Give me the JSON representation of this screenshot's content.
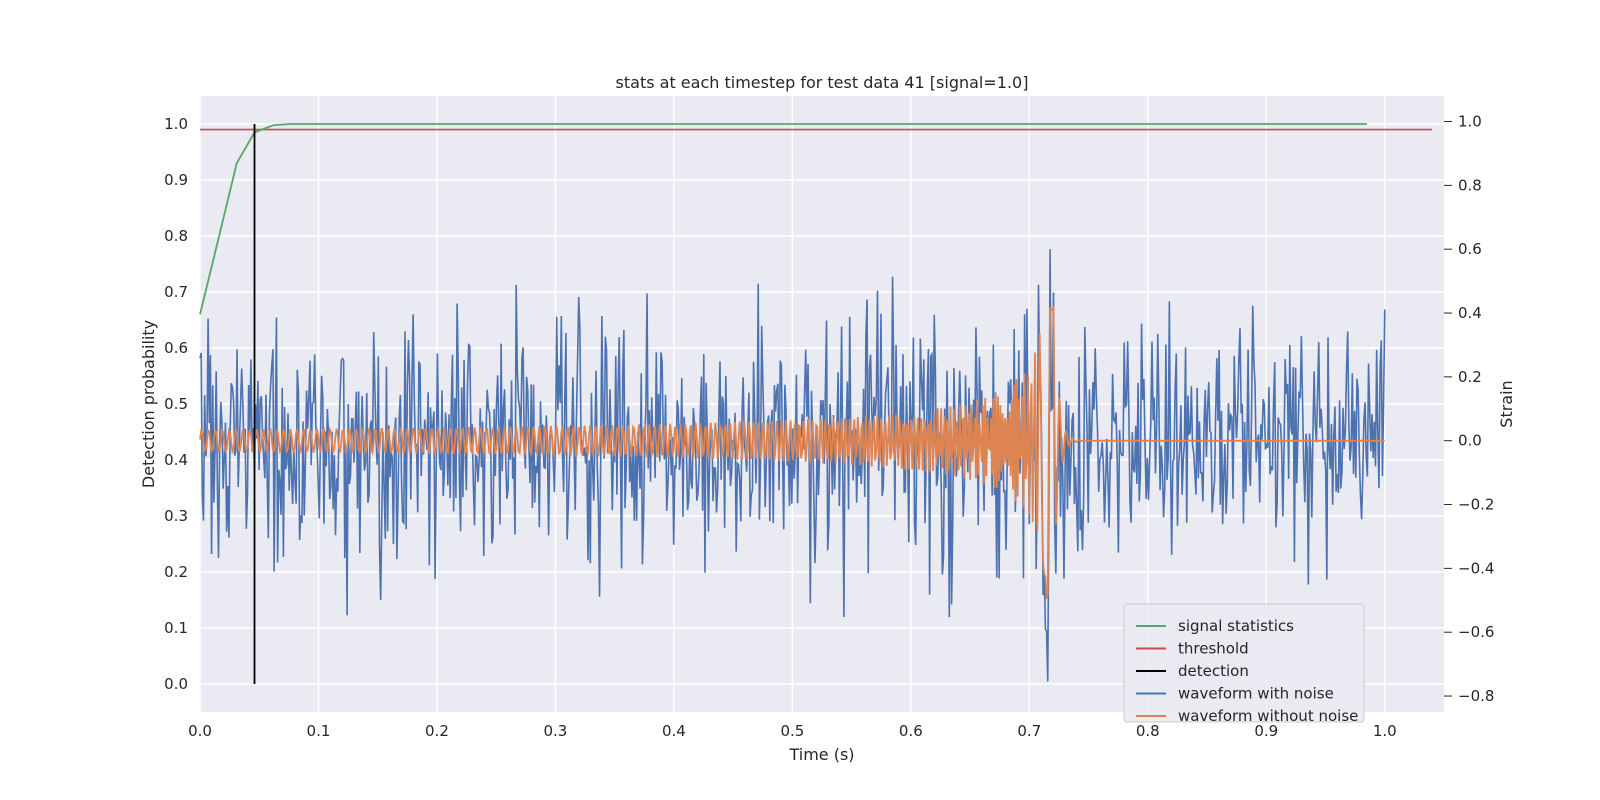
{
  "chart_data": {
    "type": "line",
    "title": "stats at each timestep for test data 41 [signal=1.0]",
    "xlabel": "Time (s)",
    "ylabel_left": "Detection probability",
    "ylabel_right": "Strain",
    "xlim": [
      0.0,
      1.05
    ],
    "ylim_left": [
      -0.05,
      1.05
    ],
    "ylim_right": [
      -0.85,
      1.08
    ],
    "x_ticks": [
      "0.0",
      "0.1",
      "0.2",
      "0.3",
      "0.4",
      "0.5",
      "0.6",
      "0.7",
      "0.8",
      "0.9",
      "1.0"
    ],
    "y_ticks_left": [
      "0.0",
      "0.1",
      "0.2",
      "0.3",
      "0.4",
      "0.5",
      "0.6",
      "0.7",
      "0.8",
      "0.9",
      "1.0"
    ],
    "y_ticks_right": [
      "−0.8",
      "−0.6",
      "−0.4",
      "−0.2",
      "0.0",
      "0.2",
      "0.4",
      "0.6",
      "0.8",
      "1.0"
    ],
    "grid": true,
    "legend_position": "lower-right",
    "series": [
      {
        "name": "signal statistics",
        "color": "#55a868",
        "axis": "left",
        "x": [
          0.0,
          0.015,
          0.031,
          0.046,
          0.062,
          0.077,
          0.1,
          0.2,
          0.3,
          0.5,
          0.7,
          0.9,
          0.985
        ],
        "y": [
          0.66,
          0.79,
          0.93,
          0.985,
          0.998,
          1.0,
          1.0,
          1.0,
          1.0,
          1.0,
          1.0,
          1.0,
          1.0
        ]
      },
      {
        "name": "threshold",
        "color": "#c44e52",
        "axis": "left",
        "x": [
          0.0,
          1.04
        ],
        "y": [
          0.99,
          0.99
        ]
      },
      {
        "name": "detection",
        "color": "#000000",
        "axis": "left",
        "x": [
          0.046,
          0.046
        ],
        "y": [
          0.0,
          1.0
        ]
      },
      {
        "name": "waveform with noise",
        "color": "#4c72b0",
        "axis": "right",
        "noise_std": 0.18,
        "x_range": [
          0.0,
          1.0
        ],
        "samples": 1024
      },
      {
        "name": "waveform without noise",
        "color": "#dd8452",
        "axis": "right",
        "x_range": [
          0.0,
          1.0
        ],
        "merger_time": 0.72,
        "amplitude_peak": 0.53
      }
    ]
  }
}
